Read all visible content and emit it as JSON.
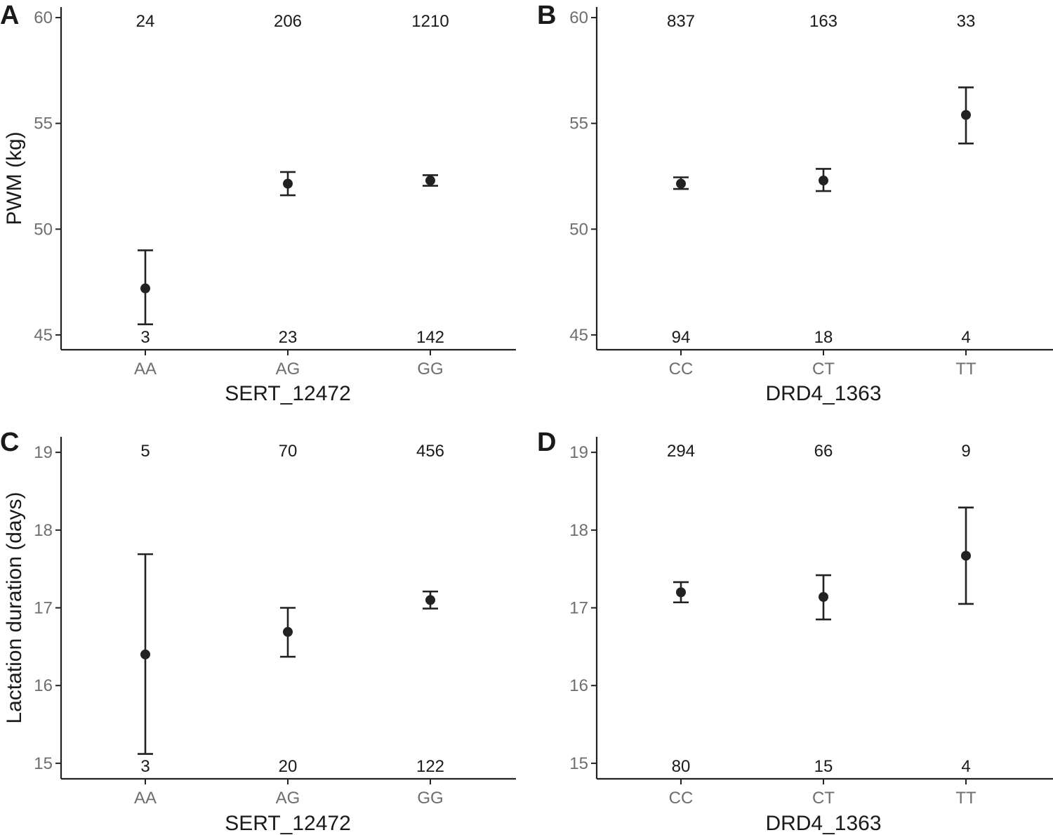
{
  "chart_data": [
    {
      "panel": "A",
      "type": "scatter",
      "xlabel": "SERT_12472",
      "ylabel": "PWM (kg)",
      "categories": [
        "AA",
        "AG",
        "GG"
      ],
      "ylim": [
        44.3,
        60.5
      ],
      "yticks": [
        45,
        50,
        55,
        60
      ],
      "mean": [
        47.2,
        52.15,
        52.3
      ],
      "lower": [
        45.5,
        51.6,
        52.05
      ],
      "upper": [
        49.0,
        52.7,
        52.55
      ],
      "top_counts": [
        "24",
        "206",
        "1210"
      ],
      "bottom_counts": [
        "3",
        "23",
        "142"
      ]
    },
    {
      "panel": "B",
      "type": "scatter",
      "xlabel": "DRD4_1363",
      "ylabel": "",
      "categories": [
        "CC",
        "CT",
        "TT"
      ],
      "ylim": [
        44.3,
        60.5
      ],
      "yticks": [
        45,
        50,
        55,
        60
      ],
      "mean": [
        52.15,
        52.3,
        55.4
      ],
      "lower": [
        51.9,
        51.8,
        54.05
      ],
      "upper": [
        52.45,
        52.85,
        56.7
      ],
      "top_counts": [
        "837",
        "163",
        "33"
      ],
      "bottom_counts": [
        "94",
        "18",
        "4"
      ]
    },
    {
      "panel": "C",
      "type": "scatter",
      "xlabel": "SERT_12472",
      "ylabel": "Lactation duration (days)",
      "categories": [
        "AA",
        "AG",
        "GG"
      ],
      "ylim": [
        14.8,
        19.2
      ],
      "yticks": [
        15,
        16,
        17,
        18,
        19
      ],
      "mean": [
        16.4,
        16.69,
        17.1
      ],
      "lower": [
        15.12,
        16.37,
        16.99
      ],
      "upper": [
        17.69,
        17.0,
        17.21
      ],
      "top_counts": [
        "5",
        "70",
        "456"
      ],
      "bottom_counts": [
        "3",
        "20",
        "122"
      ]
    },
    {
      "panel": "D",
      "type": "scatter",
      "xlabel": "DRD4_1363",
      "ylabel": "",
      "categories": [
        "CC",
        "CT",
        "TT"
      ],
      "ylim": [
        14.8,
        19.2
      ],
      "yticks": [
        15,
        16,
        17,
        18,
        19
      ],
      "mean": [
        17.2,
        17.14,
        17.67
      ],
      "lower": [
        17.07,
        16.85,
        17.05
      ],
      "upper": [
        17.33,
        17.42,
        18.29
      ],
      "top_counts": [
        "294",
        "66",
        "9"
      ],
      "bottom_counts": [
        "80",
        "15",
        "4"
      ]
    }
  ]
}
